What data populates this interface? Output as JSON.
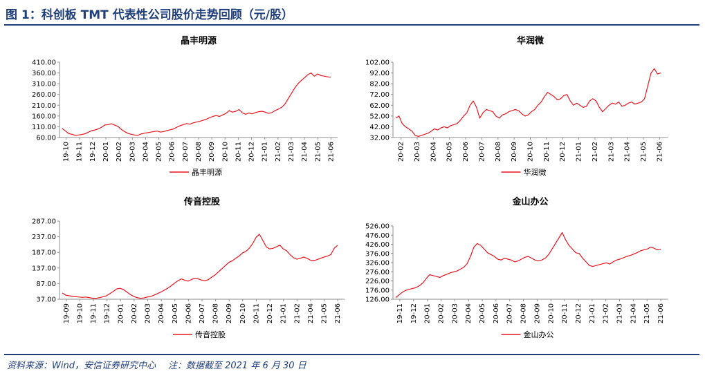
{
  "header": {
    "title": "图 1：科创板 TMT 代表性公司股价走势回顾（元/股）"
  },
  "footer": {
    "source": "资料来源：Wind，安信证券研究中心",
    "note": "注：数据截至 2021 年 6 月 30 日"
  },
  "colors": {
    "line": "#e8141e",
    "axis": "#8c8c8c",
    "brand": "#1f3e7a"
  },
  "chart_data": [
    {
      "type": "line",
      "title": "晶丰明源",
      "legend": "晶丰明源",
      "legend_position": "bottom",
      "grid": false,
      "ylim": [
        60,
        410
      ],
      "yticks": [
        "410.00",
        "360.00",
        "310.00",
        "260.00",
        "210.00",
        "160.00",
        "110.00",
        "60.00"
      ],
      "xticks": [
        "19-10",
        "19-11",
        "19-12",
        "20-01",
        "20-02",
        "20-03",
        "20-04",
        "20-05",
        "20-06",
        "20-07",
        "20-08",
        "20-09",
        "20-10",
        "20-11",
        "20-12",
        "21-01",
        "21-02",
        "21-03",
        "21-04",
        "21-05",
        "21-06"
      ],
      "series": [
        {
          "name": "晶丰明源",
          "values": [
            102,
            90,
            78,
            75,
            70,
            72,
            74,
            78,
            85,
            92,
            95,
            100,
            108,
            118,
            120,
            124,
            118,
            112,
            98,
            88,
            80,
            75,
            72,
            70,
            76,
            80,
            82,
            85,
            88,
            90,
            85,
            88,
            92,
            96,
            100,
            108,
            115,
            120,
            125,
            122,
            128,
            132,
            135,
            140,
            145,
            152,
            158,
            162,
            158,
            165,
            172,
            185,
            178,
            182,
            190,
            175,
            168,
            174,
            170,
            176,
            180,
            182,
            178,
            172,
            176,
            185,
            192,
            200,
            215,
            240,
            265,
            290,
            310,
            325,
            338,
            352,
            360,
            345,
            355,
            348,
            345,
            342,
            340
          ]
        }
      ]
    },
    {
      "type": "line",
      "title": "华润微",
      "legend": "华润微",
      "legend_position": "bottom",
      "grid": false,
      "ylim": [
        32,
        102
      ],
      "yticks": [
        "102.00",
        "92.00",
        "82.00",
        "72.00",
        "62.00",
        "52.00",
        "42.00",
        "32.00"
      ],
      "xticks": [
        "20-02",
        "20-03",
        "20-04",
        "20-05",
        "20-06",
        "20-07",
        "20-08",
        "20-09",
        "20-10",
        "20-11",
        "20-12",
        "21-01",
        "21-02",
        "21-03",
        "21-04",
        "21-05",
        "21-06"
      ],
      "series": [
        {
          "name": "华润微",
          "values": [
            50,
            52,
            45,
            42,
            40,
            38,
            34,
            33,
            34,
            35,
            36,
            38,
            40,
            39,
            41,
            42,
            41,
            43,
            44,
            45,
            48,
            52,
            55,
            62,
            66,
            60,
            50,
            55,
            58,
            57,
            56,
            52,
            50,
            53,
            54,
            56,
            57,
            58,
            57,
            54,
            52,
            53,
            56,
            58,
            62,
            65,
            70,
            74,
            72,
            70,
            67,
            68,
            71,
            72,
            66,
            62,
            64,
            62,
            60,
            61,
            66,
            68,
            66,
            60,
            56,
            59,
            62,
            64,
            63,
            65,
            61,
            62,
            64,
            65,
            63,
            64,
            65,
            68,
            80,
            92,
            96,
            91,
            92
          ]
        }
      ]
    },
    {
      "type": "line",
      "title": "传音控股",
      "legend": "传音控股",
      "legend_position": "bottom",
      "grid": false,
      "ylim": [
        37,
        287
      ],
      "yticks": [
        "287.00",
        "237.00",
        "187.00",
        "137.00",
        "87.00",
        "37.00"
      ],
      "xticks": [
        "19-09",
        "19-10",
        "19-11",
        "19-12",
        "20-01",
        "20-02",
        "20-03",
        "20-04",
        "20-05",
        "20-06",
        "20-07",
        "20-08",
        "20-09",
        "20-10",
        "20-11",
        "20-12",
        "21-01",
        "21-02",
        "21-04",
        "21-05",
        "21-06"
      ],
      "series": [
        {
          "name": "传音控股",
          "values": [
            57,
            50,
            48,
            46,
            45,
            44,
            43,
            44,
            42,
            40,
            40,
            42,
            45,
            48,
            55,
            62,
            70,
            72,
            68,
            60,
            52,
            46,
            42,
            40,
            41,
            44,
            46,
            50,
            55,
            60,
            66,
            72,
            80,
            88,
            96,
            102,
            98,
            95,
            100,
            104,
            102,
            98,
            96,
            100,
            108,
            115,
            125,
            135,
            145,
            155,
            160,
            168,
            175,
            185,
            190,
            200,
            215,
            235,
            245,
            225,
            205,
            198,
            200,
            205,
            210,
            198,
            192,
            180,
            170,
            165,
            168,
            172,
            168,
            162,
            160,
            164,
            168,
            172,
            175,
            180,
            200,
            210
          ]
        }
      ]
    },
    {
      "type": "line",
      "title": "金山办公",
      "legend": "金山办公",
      "legend_position": "bottom",
      "grid": false,
      "ylim": [
        126,
        526
      ],
      "yticks": [
        "526.00",
        "476.00",
        "426.00",
        "376.00",
        "326.00",
        "276.00",
        "226.00",
        "176.00",
        "126.00"
      ],
      "xticks": [
        "19-11",
        "19-12",
        "20-01",
        "20-02",
        "20-03",
        "20-04",
        "20-05",
        "20-06",
        "20-07",
        "20-08",
        "20-09",
        "20-10",
        "20-11",
        "20-12",
        "21-01",
        "21-02",
        "21-03",
        "21-04",
        "21-05",
        "21-06"
      ],
      "series": [
        {
          "name": "金山办公",
          "values": [
            135,
            150,
            165,
            175,
            180,
            185,
            190,
            200,
            215,
            240,
            260,
            255,
            250,
            245,
            255,
            262,
            270,
            275,
            280,
            290,
            300,
            320,
            360,
            410,
            430,
            420,
            400,
            380,
            370,
            360,
            345,
            340,
            350,
            345,
            340,
            330,
            335,
            345,
            355,
            360,
            350,
            340,
            335,
            340,
            350,
            370,
            400,
            430,
            460,
            490,
            450,
            420,
            400,
            380,
            375,
            350,
            330,
            310,
            305,
            310,
            315,
            320,
            325,
            318,
            330,
            340,
            345,
            352,
            360,
            365,
            372,
            380,
            390,
            395,
            400,
            410,
            405,
            395,
            400
          ]
        }
      ]
    }
  ]
}
